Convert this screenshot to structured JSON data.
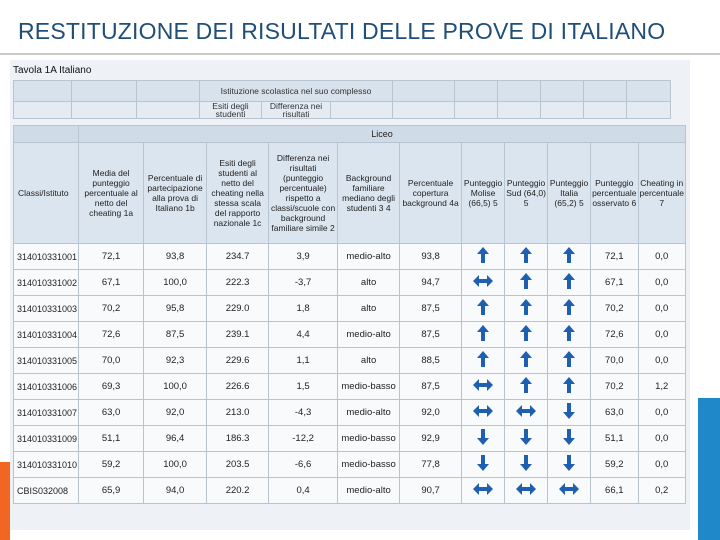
{
  "slide": {
    "title": "RESTITUZIONE DEI RISULTATI DELLE PROVE DI ITALIANO"
  },
  "table_caption": "Tavola 1A Italiano",
  "top_table": {
    "group_header": "Istituzione scolastica nel suo complesso",
    "sub1": "Esiti degli studenti",
    "sub2": "Differenza nei risultati"
  },
  "liceo_label": "Liceo",
  "columns": [
    "Classi/Istituto",
    "Media del punteggio percentuale al netto del cheating 1a",
    "Percentuale di partecipazione alla prova di Italiano 1b",
    "Esiti degli studenti al netto del cheating nella stessa scala del rapporto nazionale 1c",
    "Differenza nei risultati (punteggio percentuale) rispetto a classi/scuole con background familiare simile 2",
    "Background familiare mediano degli studenti 3 4",
    "Percentuale copertura background 4a",
    "Punteggio Molise (66,5) 5",
    "Punteggio Sud (64,0) 5",
    "Punteggio Italia (65,2) 5",
    "Punteggio percentuale osservato 6",
    "Cheating in percentuale 7"
  ],
  "rows": [
    {
      "code": "314010331001",
      "media": "72,1",
      "partecipazione": "93,8",
      "esiti": "234.7",
      "differenza": "3,9",
      "background": "medio-alto",
      "copertura": "93,8",
      "molise": "up",
      "sud": "up",
      "italia": "up",
      "osservato": "72,1",
      "cheating": "0,0"
    },
    {
      "code": "314010331002",
      "media": "67,1",
      "partecipazione": "100,0",
      "esiti": "222.3",
      "differenza": "-3,7",
      "background": "alto",
      "copertura": "94,7",
      "molise": "lr",
      "sud": "up",
      "italia": "up",
      "osservato": "67,1",
      "cheating": "0,0"
    },
    {
      "code": "314010331003",
      "media": "70,2",
      "partecipazione": "95,8",
      "esiti": "229.0",
      "differenza": "1,8",
      "background": "alto",
      "copertura": "87,5",
      "molise": "up",
      "sud": "up",
      "italia": "up",
      "osservato": "70,2",
      "cheating": "0,0"
    },
    {
      "code": "314010331004",
      "media": "72,6",
      "partecipazione": "87,5",
      "esiti": "239.1",
      "differenza": "4,4",
      "background": "medio-alto",
      "copertura": "87,5",
      "molise": "up",
      "sud": "up",
      "italia": "up",
      "osservato": "72,6",
      "cheating": "0,0"
    },
    {
      "code": "314010331005",
      "media": "70,0",
      "partecipazione": "92,3",
      "esiti": "229.6",
      "differenza": "1,1",
      "background": "alto",
      "copertura": "88,5",
      "molise": "up",
      "sud": "up",
      "italia": "up",
      "osservato": "70,0",
      "cheating": "0,0"
    },
    {
      "code": "314010331006",
      "media": "69,3",
      "partecipazione": "100,0",
      "esiti": "226.6",
      "differenza": "1,5",
      "background": "medio-basso",
      "copertura": "87,5",
      "molise": "lr",
      "sud": "up",
      "italia": "up",
      "osservato": "70,2",
      "cheating": "1,2"
    },
    {
      "code": "314010331007",
      "media": "63,0",
      "partecipazione": "92,0",
      "esiti": "213.0",
      "differenza": "-4,3",
      "background": "medio-alto",
      "copertura": "92,0",
      "molise": "lr",
      "sud": "lr",
      "italia": "down",
      "osservato": "63,0",
      "cheating": "0,0"
    },
    {
      "code": "314010331009",
      "media": "51,1",
      "partecipazione": "96,4",
      "esiti": "186.3",
      "differenza": "-12,2",
      "background": "medio-basso",
      "copertura": "92,9",
      "molise": "down",
      "sud": "down",
      "italia": "down",
      "osservato": "51,1",
      "cheating": "0,0"
    },
    {
      "code": "314010331010",
      "media": "59,2",
      "partecipazione": "100,0",
      "esiti": "203.5",
      "differenza": "-6,6",
      "background": "medio-basso",
      "copertura": "77,8",
      "molise": "down",
      "sud": "down",
      "italia": "down",
      "osservato": "59,2",
      "cheating": "0,0"
    },
    {
      "code": "CBIS032008",
      "media": "65,9",
      "partecipazione": "94,0",
      "esiti": "220.2",
      "differenza": "0,4",
      "background": "medio-alto",
      "copertura": "90,7",
      "molise": "lr",
      "sud": "lr",
      "italia": "lr",
      "osservato": "66,1",
      "cheating": "0,2"
    }
  ],
  "colors": {
    "arrow": "#1f5fb0",
    "title": "#1f4e79",
    "accent_blue": "#1e88c8",
    "accent_orange": "#f26522"
  }
}
